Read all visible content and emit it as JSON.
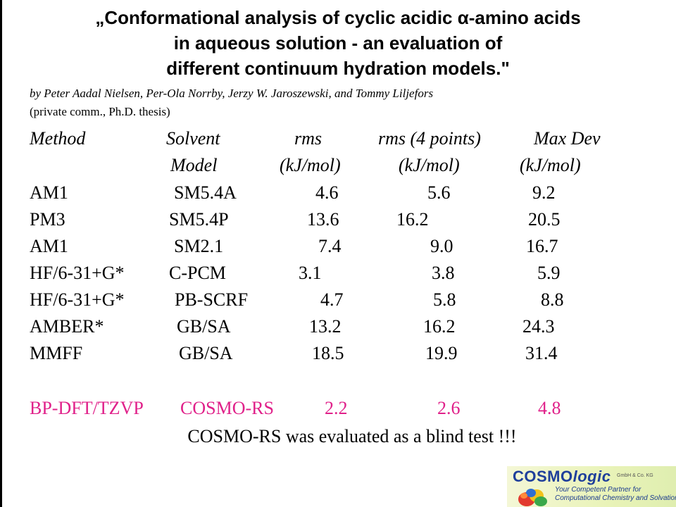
{
  "title": {
    "line1": "„Conformational analysis of cyclic acidic α-amino acids",
    "line2": "in aqueous solution - an evaluation of",
    "line3": "different continuum hydration models.\""
  },
  "byline": "by Peter Aadal Nielsen, Per-Ola Norrby, Jerzy W. Jaroszewski, and Tommy Liljefors",
  "note": "(private comm., Ph.D. thesis)",
  "table": {
    "header1": [
      "Method",
      "Solvent",
      "rms",
      "rms (4 points)",
      "Max Dev"
    ],
    "header2": [
      "",
      "Model",
      "(kJ/mol)",
      "(kJ/mol)",
      "(kJ/mol)"
    ],
    "rows": [
      [
        "AM1",
        "SM5.4A",
        "4.6",
        "5.6",
        "9.2"
      ],
      [
        "PM3",
        "SM5.4P",
        "13.6",
        "16.2",
        "20.5"
      ],
      [
        "AM1",
        "SM2.1",
        "7.4",
        "9.0",
        "16.7"
      ],
      [
        "HF/6-31+G*",
        "C-PCM",
        "3.1",
        "3.8",
        "5.9"
      ],
      [
        "HF/6-31+G*",
        "PB-SCRF",
        "4.7",
        "5.8",
        "8.8"
      ],
      [
        "AMBER*",
        "GB/SA",
        "13.2",
        "16.2",
        "24.3"
      ],
      [
        "MMFF",
        "GB/SA",
        "18.5",
        "19.9",
        "31.4"
      ]
    ],
    "highlight_row": [
      "BP-DFT/TZVP",
      "COSMO-RS",
      "2.2",
      "2.6",
      "4.8"
    ],
    "highlight_color": "#e0218a"
  },
  "conclusion": "COSMO-RS was evaluated as a blind test !!!",
  "logo": {
    "name_part1": "COSMO",
    "name_part2": "logic",
    "company_suffix": "GmbH & Co. KG",
    "tagline1": "Your Competent Partner for",
    "tagline2": "Computational Chemistry and Solvation",
    "brand_color": "#1f3f9b"
  }
}
